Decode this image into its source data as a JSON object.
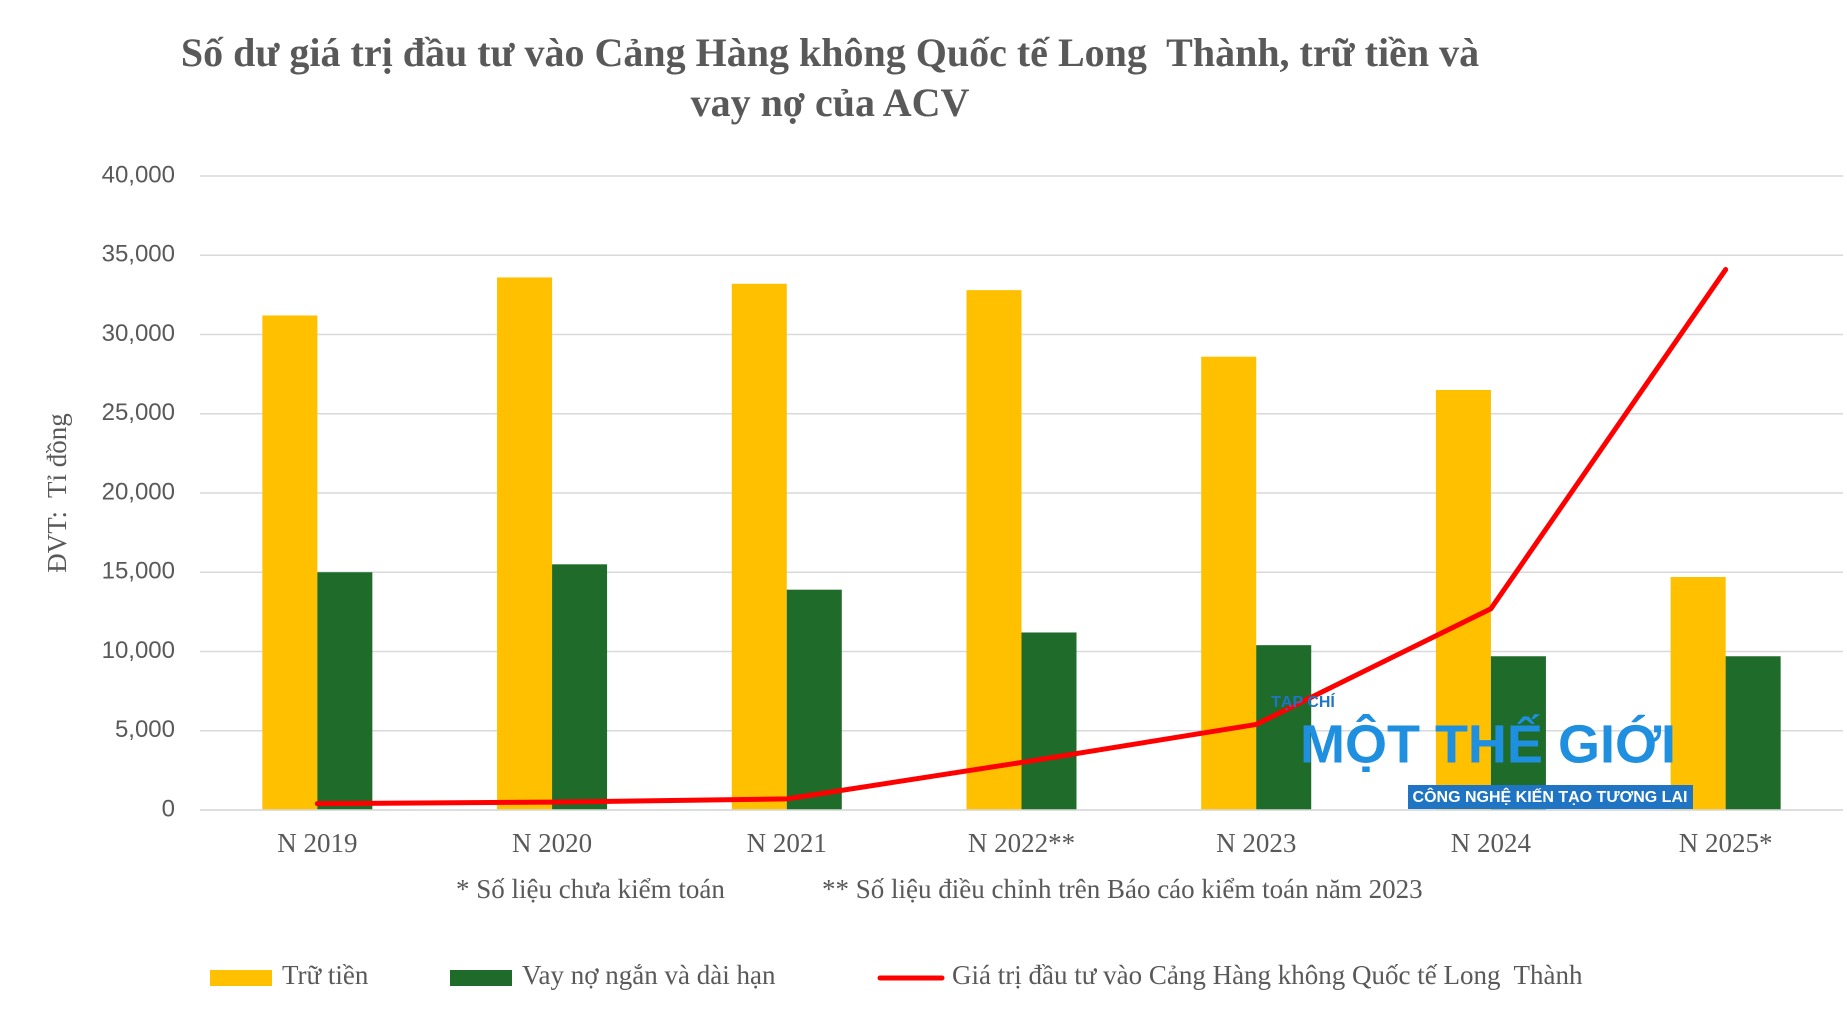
{
  "chart_data": {
    "type": "bar-line",
    "title": "Số dư giá trị đầu tư vào Cảng Hàng không Quốc tế Long  Thành, trữ tiền và vay nợ của ACV",
    "y_label": "ĐVT:  Tỉ đồng",
    "notes": [
      "* Số liệu chưa kiểm toán",
      "** Số liệu điều chỉnh trên Báo cáo kiểm toán năm 2023"
    ],
    "watermark": [
      "TẠP CHÍ",
      "MỘT THẾ GIỚI",
      "CÔNG NGHỆ KIẾN TẠO TƯƠNG LAI"
    ],
    "categories": [
      "N 2019",
      "N 2020",
      "N 2021",
      "N 2022**",
      "N 2023",
      "N 2024",
      "N 2025*"
    ],
    "series": [
      {
        "name": "Trữ tiền",
        "type": "bar",
        "color": "#ffc000",
        "values": [
          31200,
          33600,
          33200,
          32800,
          28600,
          26500,
          14700
        ]
      },
      {
        "name": "Vay nợ ngắn và dài hạn",
        "type": "bar",
        "color": "#1e6b2a",
        "values": [
          15000,
          15500,
          13900,
          11200,
          10400,
          9700,
          9700
        ]
      },
      {
        "name": "Giá trị đầu tư vào Cảng Hàng không Quốc tế Long  Thành",
        "type": "line",
        "color": "#ff0000",
        "values": [
          400,
          500,
          700,
          3000,
          5400,
          12700,
          34100
        ]
      }
    ],
    "ylim": [
      0,
      40000
    ],
    "yticks": [
      0,
      {
        "value": 5000,
        "label": "5,000"
      },
      {
        "value": 10000,
        "label": "10,000"
      },
      {
        "value": 15000,
        "label": "15,000"
      },
      {
        "value": 20000,
        "label": "20,000"
      },
      {
        "value": 25000,
        "label": "25,000"
      },
      {
        "value": 30000,
        "label": "30,000"
      },
      {
        "value": 35000,
        "label": "35,000"
      },
      {
        "value": 40000,
        "label": "40,000"
      }
    ],
    "grid": true
  }
}
